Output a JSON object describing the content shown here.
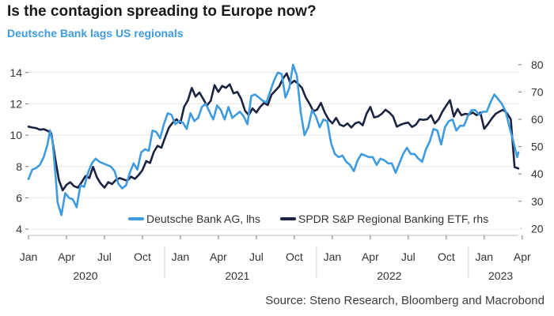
{
  "header": {
    "title": "Is the contagion spreading to Europe now?",
    "subtitle": "Deutsche Bank lags US regionals",
    "source": "Source: Steno Research, Bloomberg and Macrobond"
  },
  "colors": {
    "series1": "#3f9be0",
    "series2": "#1c2340",
    "grid": "#e6e6e6"
  },
  "chart_data": {
    "type": "line",
    "x_tick_labels": [
      "Jan",
      "Apr",
      "Jul",
      "Oct",
      "Jan",
      "Apr",
      "Jul",
      "Oct",
      "Jan",
      "Apr",
      "Jul",
      "Oct",
      "Jan",
      "Apr"
    ],
    "x_year_labels": [
      "2020",
      "2021",
      "2022",
      "2023"
    ],
    "xlim": [
      "2020-01",
      "2023-04"
    ],
    "y_left": {
      "ticks": [
        4,
        6,
        8,
        10,
        12,
        14
      ],
      "lim": [
        3.6,
        15.2
      ]
    },
    "y_right": {
      "ticks": [
        20,
        30,
        40,
        50,
        60,
        70,
        80
      ],
      "lim": [
        17.5,
        84
      ]
    },
    "grid": "horizontal",
    "legend_position": "bottom-right",
    "series": [
      {
        "name": "Deutsche Bank AG, lhs",
        "axis": "left",
        "x": [
          0,
          0.3,
          0.6,
          0.9,
          1.2,
          1.5,
          1.7,
          1.9,
          2.1,
          2.3,
          2.6,
          2.9,
          3.2,
          3.5,
          3.8,
          4.1,
          4.4,
          4.7,
          5.0,
          5.3,
          5.6,
          5.9,
          6.2,
          6.5,
          6.8,
          7.1,
          7.4,
          7.7,
          8.0,
          8.3,
          8.6,
          8.9,
          9.2,
          9.5,
          9.8,
          10.1,
          10.4,
          10.7,
          11.0,
          11.3,
          11.6,
          11.9,
          12.2,
          12.5,
          12.8,
          13.1,
          13.4,
          13.7,
          14.0,
          14.3,
          14.6,
          14.9,
          15.2,
          15.5,
          15.8,
          16.1,
          16.4,
          16.7,
          17.0,
          17.3,
          17.6,
          17.9,
          18.2,
          18.5,
          18.8,
          19.1,
          19.4,
          19.7,
          20.0,
          20.3,
          20.6,
          20.9,
          21.2,
          21.5,
          21.8,
          22.1,
          22.4,
          22.7,
          23.0,
          23.3,
          23.6,
          23.9,
          24.2,
          24.5,
          24.8,
          25.1,
          25.4,
          25.7,
          26.0,
          26.3,
          26.6,
          26.9,
          27.2,
          27.5,
          27.8,
          28.1,
          28.4,
          28.7,
          29.0,
          29.3,
          29.6,
          29.9,
          30.2,
          30.5,
          30.8,
          31.1,
          31.4,
          31.7,
          32.0,
          32.3,
          32.6,
          32.9,
          33.2,
          33.5,
          33.8,
          34.1,
          34.4,
          34.7,
          35.0,
          35.3,
          35.6,
          35.9,
          36.2,
          36.5,
          36.8,
          37.1,
          37.4,
          37.7,
          38.0,
          38.3,
          38.6,
          38.7
        ],
        "values": [
          7.2,
          7.8,
          7.9,
          8.1,
          8.6,
          9.4,
          10.3,
          9.6,
          7.8,
          5.7,
          4.9,
          6.3,
          6.0,
          5.9,
          5.4,
          6.8,
          6.7,
          7.6,
          8.2,
          8.5,
          8.3,
          8.2,
          8.1,
          8.0,
          7.7,
          6.9,
          6.6,
          6.8,
          7.6,
          8.2,
          7.8,
          8.9,
          9.1,
          9.0,
          10.3,
          10.2,
          9.8,
          10.7,
          11.4,
          11.3,
          10.7,
          10.9,
          10.8,
          10.4,
          11.4,
          10.9,
          11.1,
          11.8,
          12.0,
          11.5,
          11.0,
          11.9,
          11.6,
          11.0,
          11.8,
          11.1,
          11.3,
          11.5,
          11.2,
          10.7,
          12.5,
          12.6,
          12.4,
          12.2,
          12.1,
          12.8,
          13.5,
          14.0,
          13.9,
          12.4,
          13.0,
          14.5,
          13.8,
          11.5,
          10.0,
          10.5,
          11.6,
          11.2,
          10.5,
          11.0,
          10.9,
          9.5,
          8.8,
          8.6,
          8.7,
          8.3,
          8.1,
          7.7,
          8.4,
          8.8,
          8.7,
          8.6,
          8.6,
          8.1,
          8.5,
          8.4,
          8.2,
          8.2,
          7.6,
          8.2,
          8.8,
          9.2,
          8.8,
          8.8,
          8.5,
          8.3,
          9.1,
          9.6,
          10.4,
          10.3,
          9.4,
          10.5,
          10.9,
          11.0,
          10.3,
          10.6,
          10.6,
          11.2,
          11.6,
          11.6,
          11.3,
          11.5,
          11.5,
          12.1,
          12.6,
          12.3,
          12.0,
          11.5,
          10.5,
          9.6,
          8.6,
          8.9
        ]
      },
      {
        "name": "SPDR S&P Regional Banking ETF, rhs",
        "axis": "right",
        "x": [
          0,
          0.3,
          0.6,
          0.9,
          1.2,
          1.5,
          1.8,
          2.1,
          2.4,
          2.7,
          3.0,
          3.3,
          3.6,
          3.9,
          4.2,
          4.5,
          4.8,
          5.1,
          5.4,
          5.7,
          6.0,
          6.3,
          6.6,
          6.9,
          7.2,
          7.5,
          7.8,
          8.1,
          8.4,
          8.7,
          9.0,
          9.3,
          9.6,
          9.9,
          10.2,
          10.5,
          10.8,
          11.1,
          11.4,
          11.7,
          12.0,
          12.3,
          12.6,
          12.9,
          13.2,
          13.5,
          13.8,
          14.1,
          14.4,
          14.7,
          15.0,
          15.3,
          15.6,
          15.9,
          16.2,
          16.5,
          16.8,
          17.1,
          17.4,
          17.7,
          18.0,
          18.3,
          18.6,
          18.9,
          19.2,
          19.5,
          19.8,
          20.1,
          20.4,
          20.7,
          21.0,
          21.3,
          21.6,
          21.9,
          22.2,
          22.5,
          22.8,
          23.1,
          23.4,
          23.7,
          24.0,
          24.3,
          24.6,
          24.9,
          25.2,
          25.5,
          25.8,
          26.1,
          26.4,
          26.7,
          27.0,
          27.3,
          27.6,
          27.9,
          28.2,
          28.5,
          28.8,
          29.1,
          29.4,
          29.7,
          30.0,
          30.3,
          30.6,
          30.9,
          31.2,
          31.5,
          31.8,
          32.1,
          32.4,
          32.7,
          33.0,
          33.3,
          33.6,
          33.9,
          34.2,
          34.5,
          34.8,
          35.1,
          35.4,
          35.7,
          36.0,
          36.3,
          36.6,
          36.9,
          37.2,
          37.5,
          37.8,
          38.1,
          38.4,
          38.7
        ],
        "values": [
          57.3,
          57.0,
          56.8,
          56.2,
          56.4,
          55.8,
          54.9,
          46.0,
          37.8,
          34.0,
          36.0,
          37.0,
          35.5,
          35.0,
          37.0,
          39.2,
          38.5,
          42.6,
          38.8,
          36.5,
          35.0,
          37.0,
          36.3,
          37.8,
          38.5,
          38.0,
          37.5,
          39.0,
          38.2,
          39.6,
          41.4,
          44.7,
          44.0,
          48.0,
          50.3,
          49.6,
          53.4,
          57.0,
          58.8,
          60.0,
          58.6,
          64.6,
          67.0,
          71.5,
          68.3,
          69.8,
          67.5,
          65.0,
          66.8,
          72.5,
          70.0,
          72.2,
          71.5,
          72.8,
          69.5,
          70.0,
          67.5,
          63.2,
          61.5,
          64.0,
          62.5,
          64.5,
          66.0,
          65.2,
          69.0,
          70.5,
          72.0,
          74.9,
          76.8,
          73.0,
          74.1,
          73.0,
          71.5,
          68.0,
          65.7,
          63.0,
          63.5,
          66.0,
          62.5,
          60.0,
          58.5,
          60.5,
          58.0,
          57.5,
          58.5,
          57.0,
          58.5,
          59.0,
          57.8,
          62.0,
          64.5,
          60.7,
          61.0,
          62.0,
          63.5,
          62.5,
          61.0,
          57.3,
          58.0,
          58.5,
          58.8,
          57.2,
          58.0,
          60.0,
          59.8,
          60.0,
          61.5,
          58.5,
          60.0,
          62.8,
          65.0,
          67.0,
          61.0,
          63.8,
          61.5,
          62.0,
          61.8,
          62.5,
          61.5,
          62.5,
          56.5,
          58.3,
          60.3,
          62.0,
          62.8,
          63.5,
          62.2,
          60.0,
          42.5,
          42.0
        ]
      }
    ]
  }
}
